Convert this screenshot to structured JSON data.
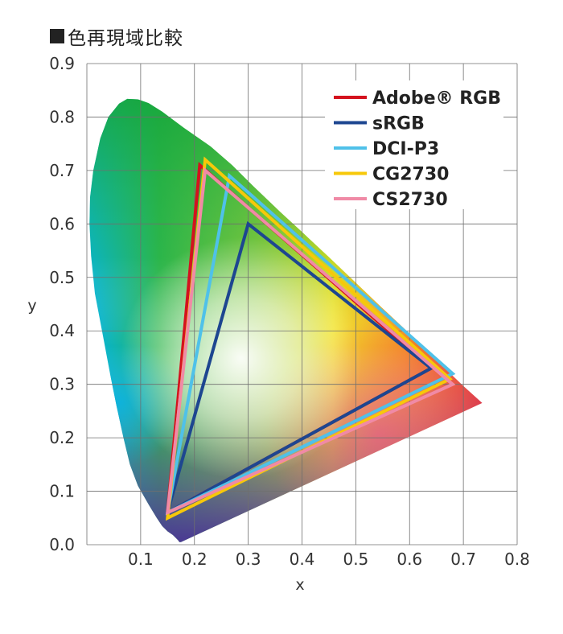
{
  "colors": {
    "adobe_rgb": "#d4121e",
    "srgb": "#1d4690",
    "dci_p3": "#4fc1e9",
    "cg2730": "#f7c80a",
    "cs2730": "#f08aa6"
  },
  "chart_data": {
    "type": "scatter",
    "title": "色再現域比較",
    "xlabel": "x",
    "ylabel": "y",
    "xlim": [
      0.0,
      0.8
    ],
    "ylim": [
      0.0,
      0.9
    ],
    "xticks": [
      "0.1",
      "0.2",
      "0.3",
      "0.4",
      "0.5",
      "0.6",
      "0.7",
      "0.8"
    ],
    "yticks": [
      "0.0",
      "0.1",
      "0.2",
      "0.3",
      "0.4",
      "0.5",
      "0.6",
      "0.7",
      "0.8",
      "0.9"
    ],
    "grid": true,
    "legend_position": "top-right",
    "series": [
      {
        "name": "Adobe® RGB",
        "color": "#d4121e",
        "points": [
          [
            0.64,
            0.33
          ],
          [
            0.21,
            0.71
          ],
          [
            0.15,
            0.06
          ]
        ]
      },
      {
        "name": "sRGB",
        "color": "#1d4690",
        "points": [
          [
            0.64,
            0.33
          ],
          [
            0.3,
            0.6
          ],
          [
            0.15,
            0.06
          ]
        ]
      },
      {
        "name": "DCI-P3",
        "color": "#4fc1e9",
        "points": [
          [
            0.68,
            0.32
          ],
          [
            0.265,
            0.69
          ],
          [
            0.15,
            0.06
          ]
        ]
      },
      {
        "name": "CG2730",
        "color": "#f7c80a",
        "points": [
          [
            0.675,
            0.31
          ],
          [
            0.22,
            0.72
          ],
          [
            0.15,
            0.05
          ]
        ]
      },
      {
        "name": "CS2730",
        "color": "#f08aa6",
        "points": [
          [
            0.68,
            0.3
          ],
          [
            0.22,
            0.7
          ],
          [
            0.15,
            0.06
          ]
        ]
      }
    ]
  }
}
